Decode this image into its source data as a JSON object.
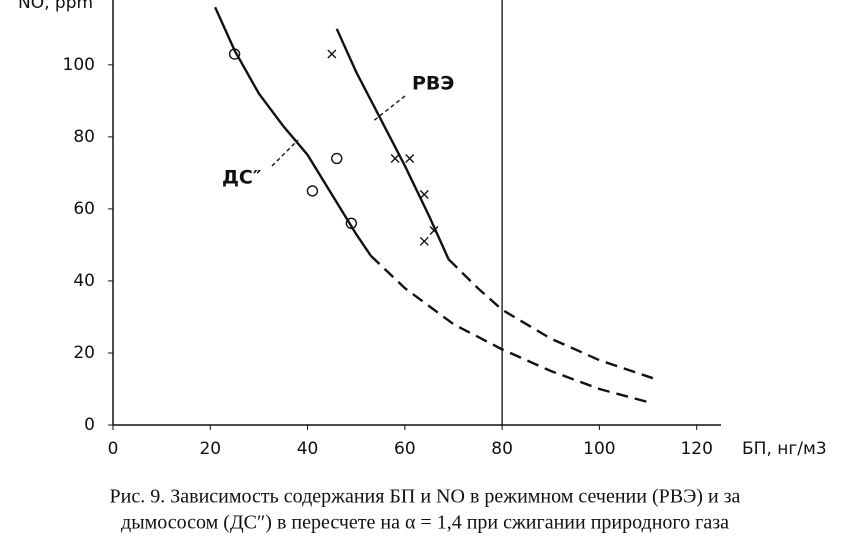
{
  "chart_data": {
    "type": "line",
    "y_label": "NO, ppm",
    "x_label": "БП, нг/м3",
    "caption": [
      "Рис. 9. Зависимость содержания БП и NO в режимном сечении (РВЭ) и за",
      "дымососом (ДС″) в пересчете на α = 1,4 при сжигании природного газа"
    ],
    "xlim": [
      0,
      125
    ],
    "ylim": [
      0,
      118
    ],
    "xticks": [
      0,
      20,
      40,
      60,
      80,
      100,
      120
    ],
    "yticks": [
      0,
      20,
      40,
      60,
      80,
      100
    ],
    "vline": 80,
    "color": "#111111",
    "series": [
      {
        "name": "ДС″",
        "solid": {
          "x": [
            21,
            25,
            30,
            35,
            40,
            45,
            50,
            53
          ],
          "values": [
            116,
            104,
            92,
            83,
            75,
            64,
            53,
            47
          ]
        },
        "dashed": {
          "x": [
            53,
            60,
            70,
            80,
            90,
            100,
            111
          ],
          "values": [
            47,
            38,
            28,
            21,
            15,
            10,
            6
          ]
        }
      },
      {
        "name": "РВЭ",
        "solid": {
          "x": [
            46,
            50,
            55,
            60,
            65,
            69
          ],
          "values": [
            110,
            98,
            85,
            72,
            58,
            46
          ]
        },
        "dashed": {
          "x": [
            69,
            75,
            80,
            90,
            100,
            111
          ],
          "values": [
            46,
            38,
            32,
            24,
            18,
            13
          ]
        }
      }
    ],
    "points": [
      {
        "marker": "circle",
        "x": [
          25,
          41,
          46,
          49
        ],
        "values": [
          103,
          65,
          74,
          56
        ]
      },
      {
        "marker": "cross",
        "x": [
          45,
          58,
          61,
          64,
          64,
          66
        ],
        "values": [
          103,
          74,
          74,
          64,
          51,
          54
        ]
      }
    ]
  }
}
